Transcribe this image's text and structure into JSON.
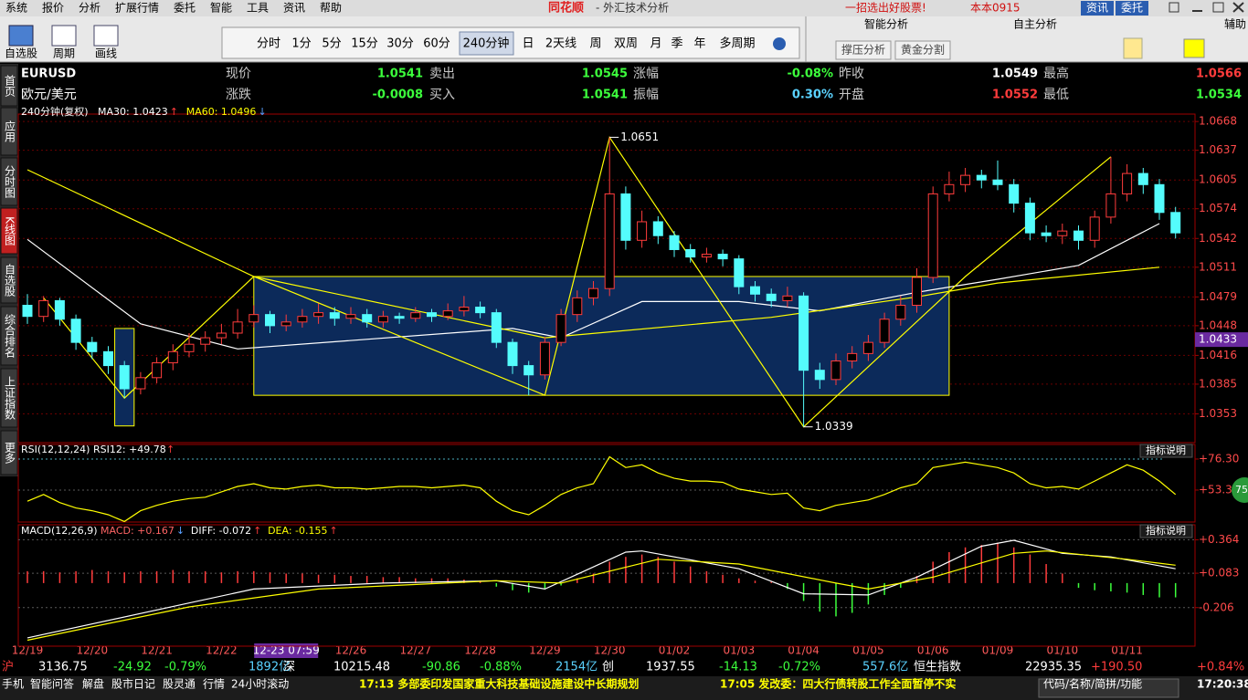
{
  "menu": {
    "items": [
      "系统",
      "报价",
      "分析",
      "扩展行情",
      "委托",
      "智能",
      "工具",
      "资讯",
      "帮助"
    ],
    "app_title": "同花顺",
    "window_title": "- 外汇技术分析",
    "promo": "一招选出好股票!",
    "user": "本本0915",
    "buttons": [
      "资讯",
      "委托"
    ]
  },
  "toolbar": {
    "tools": [
      "自选股",
      "周期",
      "画线"
    ],
    "periods": [
      "分时",
      "1分",
      "5分",
      "15分",
      "30分",
      "60分",
      "240分钟",
      "日",
      "2天线",
      "周",
      "双周",
      "月",
      "季",
      "年",
      "多周期"
    ],
    "analysis_tabs": [
      "智能分析",
      "自主分析",
      "辅助"
    ],
    "analysis_buttons": [
      "撑压分析",
      "黄金分割"
    ]
  },
  "side_tabs": [
    "首页",
    "应用",
    "分时图",
    "K线图",
    "自选股",
    "综合排名",
    "上证指数",
    "更多"
  ],
  "quote": {
    "symbol": "EURUSD",
    "name": "欧元/美元",
    "fields": [
      {
        "label": "现价",
        "value": "1.0541",
        "color": "#3cff3c"
      },
      {
        "label": "卖出",
        "value": "1.0545",
        "color": "#3cff3c"
      },
      {
        "label": "涨幅",
        "value": "-0.08%",
        "color": "#3cff3c"
      },
      {
        "label": "昨收",
        "value": "1.0549",
        "color": "#ffffff"
      },
      {
        "label": "最高",
        "value": "1.0566",
        "color": "#ff3c3c"
      },
      {
        "label": "涨跌",
        "value": "-0.0008",
        "color": "#3cff3c"
      },
      {
        "label": "买入",
        "value": "1.0541",
        "color": "#3cff3c"
      },
      {
        "label": "振幅",
        "value": "0.30%",
        "color": "#5ad2ff"
      },
      {
        "label": "开盘",
        "value": "1.0552",
        "color": "#ff3c3c"
      },
      {
        "label": "最低",
        "value": "1.0534",
        "color": "#3cff3c"
      }
    ]
  },
  "chart_data": [
    {
      "type": "candlestick",
      "subtitle": "240分钟(复权)",
      "categories": [
        "12/19",
        null,
        null,
        null,
        "12/20",
        null,
        null,
        null,
        "12/21",
        null,
        null,
        null,
        "12/22",
        null,
        null,
        null,
        null,
        null,
        null,
        null,
        "12/26",
        null,
        null,
        null,
        "12/27",
        null,
        null,
        null,
        "12/28",
        null,
        null,
        null,
        "12/29",
        null,
        null,
        null,
        "12/30",
        null,
        null,
        null,
        "01/02",
        null,
        null,
        null,
        "01/03",
        null,
        null,
        null,
        "01/04",
        null,
        null,
        null,
        "01/05",
        null,
        null,
        null,
        "01/06",
        null,
        null,
        null,
        "01/09",
        null,
        null,
        null,
        "01/10",
        null,
        null,
        null,
        "01/11",
        null,
        null,
        null
      ],
      "cursor": {
        "x": 16,
        "label": "12-23 07:59"
      },
      "ohlc": [
        [
          1.047,
          1.0458,
          1.0482,
          1.045
        ],
        [
          1.0458,
          1.0475,
          1.048,
          1.0452
        ],
        [
          1.0475,
          1.0455,
          1.0478,
          1.0448
        ],
        [
          1.0455,
          1.043,
          1.046,
          1.0422
        ],
        [
          1.043,
          1.042,
          1.0436,
          1.0412
        ],
        [
          1.042,
          1.0405,
          1.0426,
          1.0396
        ],
        [
          1.0405,
          1.038,
          1.041,
          1.037
        ],
        [
          1.038,
          1.0392,
          1.0398,
          1.0374
        ],
        [
          1.0392,
          1.0408,
          1.0414,
          1.0386
        ],
        [
          1.0408,
          1.042,
          1.0428,
          1.04
        ],
        [
          1.042,
          1.0428,
          1.044,
          1.0414
        ],
        [
          1.0428,
          1.0435,
          1.0442,
          1.042
        ],
        [
          1.0435,
          1.044,
          1.045,
          1.0428
        ],
        [
          1.044,
          1.0452,
          1.0466,
          1.0434
        ],
        [
          1.0452,
          1.046,
          1.047,
          1.0446
        ],
        [
          1.046,
          1.0448,
          1.0464,
          1.044
        ],
        [
          1.0448,
          1.0452,
          1.046,
          1.0442
        ],
        [
          1.0452,
          1.0458,
          1.0466,
          1.0446
        ],
        [
          1.0458,
          1.0462,
          1.0472,
          1.045
        ],
        [
          1.0462,
          1.0456,
          1.0468,
          1.0448
        ],
        [
          1.0456,
          1.046,
          1.0468,
          1.045
        ],
        [
          1.046,
          1.0452,
          1.0466,
          1.0446
        ],
        [
          1.0452,
          1.0458,
          1.0464,
          1.0446
        ],
        [
          1.0458,
          1.0456,
          1.0462,
          1.045
        ],
        [
          1.0456,
          1.0462,
          1.0468,
          1.0452
        ],
        [
          1.0462,
          1.0458,
          1.0466,
          1.0452
        ],
        [
          1.0458,
          1.0464,
          1.0472,
          1.0454
        ],
        [
          1.0464,
          1.0468,
          1.048,
          1.0458
        ],
        [
          1.0468,
          1.0462,
          1.0474,
          1.0456
        ],
        [
          1.0462,
          1.043,
          1.0466,
          1.0424
        ],
        [
          1.043,
          1.0405,
          1.0434,
          1.0396
        ],
        [
          1.0405,
          1.0395,
          1.041,
          1.0373
        ],
        [
          1.0395,
          1.043,
          1.0436,
          1.039
        ],
        [
          1.043,
          1.046,
          1.0466,
          1.0426
        ],
        [
          1.046,
          1.0478,
          1.0486,
          1.0452
        ],
        [
          1.0478,
          1.0488,
          1.0496,
          1.047
        ],
        [
          1.0488,
          1.059,
          1.0651,
          1.048
        ],
        [
          1.059,
          1.054,
          1.0598,
          1.053
        ],
        [
          1.054,
          1.056,
          1.0572,
          1.0532
        ],
        [
          1.056,
          1.0545,
          1.0566,
          1.0536
        ],
        [
          1.0545,
          1.053,
          1.055,
          1.0522
        ],
        [
          1.053,
          1.0522,
          1.0536,
          1.0516
        ],
        [
          1.0522,
          1.0525,
          1.0532,
          1.0516
        ],
        [
          1.0525,
          1.052,
          1.053,
          1.0512
        ],
        [
          1.052,
          1.049,
          1.0524,
          1.0482
        ],
        [
          1.049,
          1.0482,
          1.0496,
          1.0474
        ],
        [
          1.0482,
          1.0475,
          1.0488,
          1.0468
        ],
        [
          1.0475,
          1.048,
          1.049,
          1.0468
        ],
        [
          1.048,
          1.04,
          1.0484,
          1.0339
        ],
        [
          1.04,
          1.039,
          1.0408,
          1.038
        ],
        [
          1.039,
          1.041,
          1.0418,
          1.0384
        ],
        [
          1.041,
          1.0418,
          1.0426,
          1.0402
        ],
        [
          1.0418,
          1.043,
          1.0438,
          1.041
        ],
        [
          1.043,
          1.0455,
          1.0462,
          1.0424
        ],
        [
          1.0455,
          1.047,
          1.048,
          1.0448
        ],
        [
          1.047,
          1.05,
          1.051,
          1.0462
        ],
        [
          1.05,
          1.059,
          1.0598,
          1.0494
        ],
        [
          1.059,
          1.06,
          1.0614,
          1.0582
        ],
        [
          1.06,
          1.061,
          1.0618,
          1.0592
        ],
        [
          1.061,
          1.0605,
          1.0616,
          1.0596
        ],
        [
          1.0605,
          1.06,
          1.0626,
          1.0594
        ],
        [
          1.06,
          1.058,
          1.0606,
          1.057
        ],
        [
          1.058,
          1.0548,
          1.0586,
          1.054
        ],
        [
          1.0548,
          1.0545,
          1.0556,
          1.0538
        ],
        [
          1.0545,
          1.055,
          1.0558,
          1.0536
        ],
        [
          1.055,
          1.054,
          1.0556,
          1.053
        ],
        [
          1.054,
          1.0565,
          1.0572,
          1.0532
        ],
        [
          1.0565,
          1.059,
          1.063,
          1.0558
        ],
        [
          1.059,
          1.0612,
          1.0622,
          1.0582
        ],
        [
          1.0612,
          1.06,
          1.0618,
          1.059
        ],
        [
          1.06,
          1.057,
          1.0606,
          1.0562
        ],
        [
          1.057,
          1.0548,
          1.0576,
          1.0542
        ]
      ],
      "up_color": "#ff3c3c",
      "down_color": "#54fcfc",
      "ylim": [
        1.0322,
        1.0676
      ],
      "yticks": [
        1.0668,
        1.0637,
        1.0605,
        1.0574,
        1.0542,
        1.0511,
        1.0479,
        1.0448,
        1.0416,
        1.0385,
        1.0353
      ],
      "grid": true,
      "lines": [
        {
          "legend": "MA30: 1.0423",
          "arrow": "↑",
          "arrow_color": "#ff3c3c",
          "color": "#ffffff",
          "x": [
            0,
            7,
            13,
            30,
            33,
            38,
            44,
            49,
            55,
            60,
            65,
            70
          ],
          "values": [
            1.0541,
            1.045,
            1.0423,
            1.0445,
            1.0435,
            1.0474,
            1.0474,
            1.0464,
            1.0484,
            1.0498,
            1.0513,
            1.0558
          ]
        },
        {
          "legend": "MA60: 1.0496",
          "arrow": "↓",
          "arrow_color": "#5aa0ff",
          "color": "#ffff00",
          "x": [
            0,
            14,
            32,
            46,
            55,
            60,
            70
          ],
          "values": [
            1.0616,
            1.0501,
            1.0435,
            1.0457,
            1.0479,
            1.0494,
            1.0511
          ]
        }
      ],
      "zigzag": {
        "color": "#ffff00",
        "x": [
          1,
          6,
          14,
          32,
          36,
          48,
          58,
          67
        ],
        "values": [
          1.0478,
          1.037,
          1.0501,
          1.0373,
          1.0651,
          1.0339,
          1.0501,
          1.063
        ]
      },
      "boxes": [
        {
          "x": [
            5.4,
            6.6
          ],
          "y": [
            1.034,
            1.0445
          ]
        },
        {
          "x": [
            14,
            57
          ],
          "y": [
            1.0373,
            1.0501
          ]
        }
      ],
      "price_labels": [
        {
          "x": 36,
          "value": 1.0651
        },
        {
          "x": 48,
          "value": 1.0339
        }
      ],
      "current_price": 1.0433
    },
    {
      "type": "line",
      "title": "RSI(12,12,24)",
      "legend": "RSI12: +49.78",
      "arrow": "↑",
      "button": "指标说明",
      "color": "#ffff00",
      "values": [
        45,
        50,
        44,
        40,
        38,
        35,
        30,
        38,
        42,
        45,
        47,
        48,
        52,
        56,
        58,
        55,
        54,
        56,
        57,
        55,
        55,
        54,
        55,
        56,
        56,
        55,
        56,
        57,
        55,
        45,
        38,
        35,
        42,
        50,
        55,
        58,
        78,
        70,
        72,
        66,
        62,
        60,
        60,
        59,
        54,
        52,
        50,
        51,
        40,
        38,
        42,
        44,
        46,
        50,
        55,
        58,
        70,
        72,
        74,
        72,
        70,
        66,
        58,
        55,
        56,
        54,
        60,
        66,
        72,
        68,
        60,
        50
      ],
      "ylim": [
        29.6,
        87.1
      ],
      "yticks": [
        {
          "value": 76.3,
          "label": "+76.30"
        },
        {
          "value": 53.3,
          "label": "+53.30"
        }
      ],
      "badge": "75"
    },
    {
      "type": "macd",
      "title": "MACD(12,26,9)",
      "button": "指标说明",
      "legends": [
        {
          "text": "MACD: +0.167",
          "color": "#ff6464",
          "arrow": "↓",
          "arrow_color": "#5aa0ff"
        },
        {
          "text": "DIFF: -0.072",
          "color": "#ffffff",
          "arrow": "↑",
          "arrow_color": "#ff3c3c"
        },
        {
          "text": "DEA: -0.155",
          "color": "#ffff00",
          "arrow": "↑",
          "arrow_color": "#ff3c3c"
        }
      ],
      "histogram": [
        0.1,
        0.1,
        0.09,
        0.1,
        0.11,
        0.1,
        0.09,
        0.1,
        0.1,
        0.11,
        0.1,
        0.1,
        0.09,
        0.1,
        0.1,
        0.09,
        0.08,
        0.08,
        0.07,
        0.07,
        0.06,
        0.06,
        0.05,
        0.05,
        0.04,
        0.04,
        0.04,
        0.03,
        0.02,
        -0.03,
        -0.06,
        -0.08,
        -0.05,
        -0.02,
        0.04,
        0.08,
        0.18,
        0.22,
        0.24,
        0.22,
        0.18,
        0.14,
        0.1,
        0.07,
        0.04,
        0.02,
        0.01,
        -0.05,
        -0.15,
        -0.24,
        -0.28,
        -0.25,
        -0.18,
        -0.1,
        -0.04,
        0.06,
        0.18,
        0.26,
        0.3,
        0.32,
        0.34,
        0.3,
        0.24,
        0.16,
        0.08,
        -0.04,
        -0.06,
        -0.07,
        -0.08,
        -0.1,
        -0.12,
        -0.12
      ],
      "up_color": "#ff3c3c",
      "down_color": "#3cff3c",
      "lines": [
        {
          "color": "#ffffff",
          "x": [
            0,
            14,
            22,
            29,
            32,
            37,
            38,
            44,
            48,
            52,
            55,
            59,
            61,
            64,
            67,
            71
          ],
          "values": [
            -0.46,
            -0.05,
            0,
            0.02,
            -0.05,
            0.26,
            0.27,
            0.12,
            -0.09,
            -0.1,
            0.05,
            0.31,
            0.36,
            0.25,
            0.22,
            0.12
          ]
        },
        {
          "color": "#ffff00",
          "x": [
            0,
            10,
            18,
            29,
            33,
            39,
            44,
            50,
            52,
            56,
            61,
            63,
            68,
            71
          ],
          "values": [
            -0.48,
            -0.2,
            -0.05,
            0.02,
            0,
            0.2,
            0.16,
            0,
            -0.05,
            0.05,
            0.25,
            0.27,
            0.2,
            0.15
          ]
        }
      ],
      "ylim": [
        -0.53,
        0.49
      ],
      "yticks": [
        {
          "value": 0.364,
          "label": "+0.364"
        },
        {
          "value": 0.083,
          "label": "+0.083"
        },
        {
          "value": -0.206,
          "label": "-0.206"
        }
      ]
    }
  ],
  "ticker": [
    [
      "沪",
      "3136.75",
      "-24.92",
      "-0.79%",
      "1892亿"
    ],
    [
      "深",
      "10215.48",
      "-90.86",
      "-0.88%",
      "2154亿"
    ],
    [
      "创",
      "1937.55",
      "-14.13",
      "-0.72%",
      "557.6亿"
    ],
    [
      "恒生指数",
      "22935.35",
      "+190.50",
      "+0.84%"
    ]
  ],
  "status": {
    "buttons": [
      "手机",
      "智能问答",
      "解盘",
      "股市日记",
      "股灵通",
      "行情",
      "24小时滚动"
    ],
    "news": [
      "17:13 多部委印发国家重大科技基础设施建设中长期规划",
      "17:05 发改委：四大行债转股工作全面暂停不实"
    ],
    "search": "代码/名称/简拼/功能",
    "clock": "17:20:38"
  }
}
